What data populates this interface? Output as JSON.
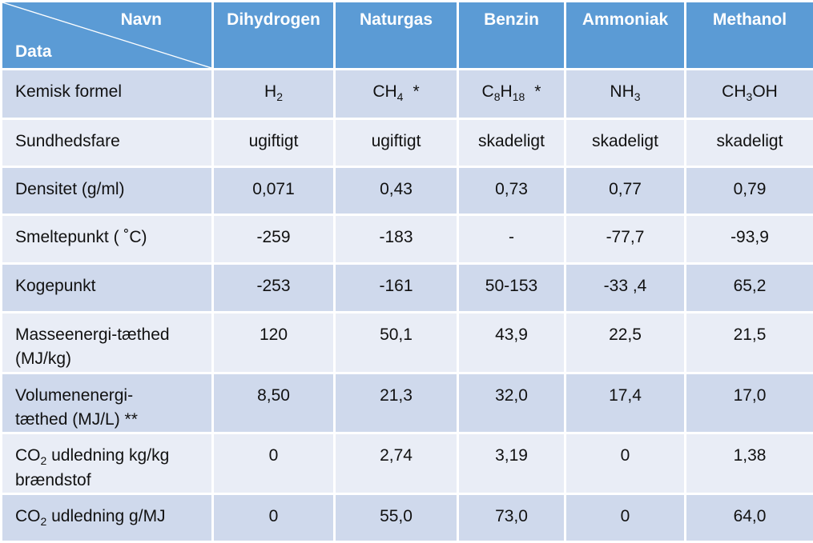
{
  "header": {
    "corner_top": "Navn",
    "corner_bottom": "Data",
    "columns": [
      "Dihydrogen",
      "Naturgas",
      "Benzin",
      "Ammoniak",
      "Methanol"
    ]
  },
  "formula_row": {
    "label": "Kemisk formel",
    "formulas": [
      {
        "parts": [
          {
            "t": "H"
          },
          {
            "t": "2",
            "sub": true
          }
        ]
      },
      {
        "parts": [
          {
            "t": "CH"
          },
          {
            "t": "4",
            "sub": true
          }
        ],
        "mark": "*"
      },
      {
        "parts": [
          {
            "t": "C"
          },
          {
            "t": "8",
            "sub": true
          },
          {
            "t": "H"
          },
          {
            "t": "18",
            "sub": true
          }
        ],
        "mark": "*"
      },
      {
        "parts": [
          {
            "t": "NH"
          },
          {
            "t": "3",
            "sub": true
          }
        ]
      },
      {
        "parts": [
          {
            "t": "CH"
          },
          {
            "t": "3",
            "sub": true
          },
          {
            "t": "OH"
          }
        ]
      }
    ]
  },
  "rows": [
    {
      "label": [
        "Sundhedsfare"
      ],
      "values": [
        "ugiftigt",
        "ugiftigt",
        "skadeligt",
        "skadeligt",
        "skadeligt"
      ]
    },
    {
      "label": [
        "Densitet (g/ml)"
      ],
      "values": [
        "0,071",
        "0,43",
        "0,73",
        "0,77",
        "0,79"
      ]
    },
    {
      "label": [
        "Smeltepunkt ( ˚C)"
      ],
      "values": [
        "-259",
        "-183",
        "-",
        "-77,7",
        "-93,9"
      ]
    },
    {
      "label": [
        "Kogepunkt"
      ],
      "values": [
        "-253",
        "-161",
        "50-153",
        "-33 ,4",
        "65,2"
      ]
    },
    {
      "label": [
        "Masseenergi-tæthed",
        "(MJ/kg)"
      ],
      "values": [
        "120",
        "50,1",
        "43,9",
        "22,5",
        "21,5"
      ]
    },
    {
      "label": [
        "Volumenenergi-",
        "tæthed (MJ/L) **"
      ],
      "values": [
        "8,50",
        "21,3",
        "32,0",
        "17,4",
        "17,0"
      ]
    },
    {
      "label": [
        "CO",
        "2",
        " udledning kg/kg",
        "brændstof"
      ],
      "co2": true,
      "values": [
        "0",
        "2,74",
        "3,19",
        "0",
        "1,38"
      ]
    },
    {
      "label": [
        "CO",
        "2",
        " udledning g/MJ"
      ],
      "co2": true,
      "values": [
        "0",
        "55,0",
        "73,0",
        "0",
        "64,0"
      ]
    }
  ]
}
